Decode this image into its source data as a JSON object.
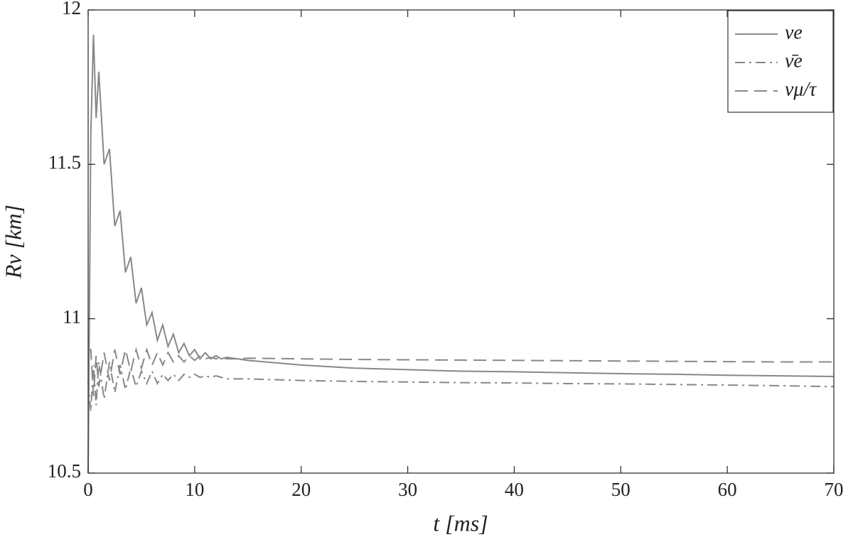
{
  "chart_data": {
    "type": "line",
    "xlabel": "t [ms]",
    "ylabel": "Rν [km]",
    "x": [
      0,
      0.25,
      0.5,
      0.75,
      1,
      1.5,
      2,
      2.5,
      3,
      3.5,
      4,
      4.5,
      5,
      5.5,
      6,
      6.5,
      7,
      7.5,
      8,
      8.5,
      9,
      9.5,
      10,
      10.5,
      11,
      11.5,
      12,
      12.5,
      13,
      14,
      15,
      20,
      25,
      30,
      35,
      40,
      45,
      50,
      55,
      60,
      65,
      70
    ],
    "series": [
      {
        "name": "νe",
        "color": "#888888",
        "dash": "solid",
        "values": [
          10.5,
          11.6,
          11.92,
          11.65,
          11.8,
          11.5,
          11.55,
          11.3,
          11.35,
          11.15,
          11.2,
          11.05,
          11.1,
          10.98,
          11.02,
          10.93,
          10.98,
          10.91,
          10.95,
          10.89,
          10.92,
          10.88,
          10.9,
          10.87,
          10.89,
          10.87,
          10.88,
          10.87,
          10.875,
          10.87,
          10.865,
          10.85,
          10.84,
          10.835,
          10.83,
          10.828,
          10.825,
          10.822,
          10.82,
          10.817,
          10.815,
          10.813
        ]
      },
      {
        "name": "ν̄e",
        "color": "#888888",
        "dash": "dashdot",
        "values": [
          10.8,
          10.7,
          10.85,
          10.72,
          10.86,
          10.74,
          10.86,
          10.76,
          10.85,
          10.77,
          10.84,
          10.78,
          10.83,
          10.79,
          10.83,
          10.79,
          10.82,
          10.8,
          10.82,
          10.8,
          10.82,
          10.81,
          10.82,
          10.81,
          10.815,
          10.81,
          10.815,
          10.81,
          10.805,
          10.805,
          10.805,
          10.8,
          10.797,
          10.795,
          10.793,
          10.792,
          10.79,
          10.789,
          10.787,
          10.785,
          10.783,
          10.78
        ]
      },
      {
        "name": "νμ/τ",
        "color": "#888888",
        "dash": "dashed",
        "values": [
          10.9,
          10.9,
          10.75,
          10.88,
          10.78,
          10.89,
          10.8,
          10.9,
          10.82,
          10.9,
          10.83,
          10.9,
          10.84,
          10.9,
          10.85,
          10.89,
          10.85,
          10.89,
          10.86,
          10.88,
          10.86,
          10.88,
          10.865,
          10.88,
          10.87,
          10.875,
          10.87,
          10.875,
          10.87,
          10.87,
          10.872,
          10.87,
          10.868,
          10.867,
          10.866,
          10.865,
          10.864,
          10.863,
          10.862,
          10.861,
          10.86,
          10.86
        ]
      }
    ],
    "xlim": [
      0,
      70
    ],
    "xticks": [
      0,
      10,
      20,
      30,
      40,
      50,
      60,
      70
    ],
    "ylim": [
      10.5,
      12
    ],
    "yticks": [
      10.5,
      11,
      11.5,
      12
    ],
    "legend": "upper right"
  }
}
